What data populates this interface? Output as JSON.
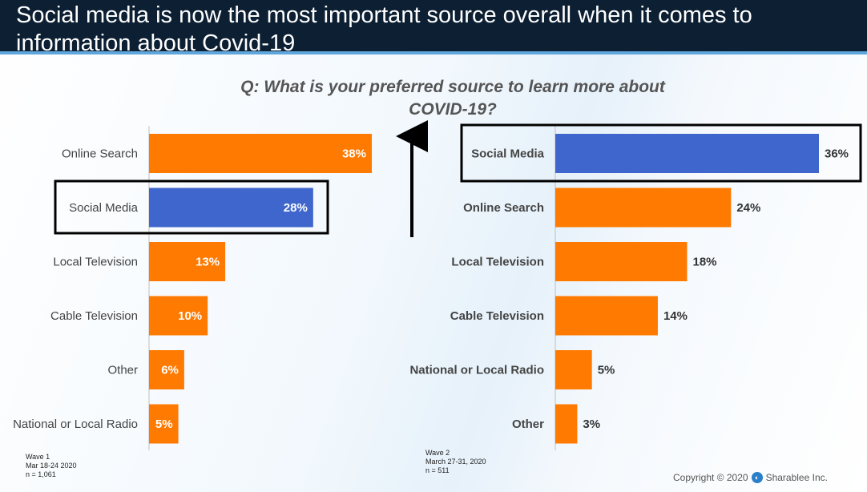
{
  "title": "Social media is now the most important source overall when it comes to information about Covid-19",
  "question": "Q: What is your preferred source to learn more about COVID-19?",
  "colors": {
    "orange": "#FF7A00",
    "blue": "#3F66CC",
    "dark_navy": "#0C1F33",
    "accent_line": "#5EA6DC"
  },
  "chart_data": [
    {
      "type": "bar",
      "orientation": "horizontal",
      "name": "Wave 1",
      "categories": [
        "Online Search",
        "Social Media",
        "Local Television",
        "Cable Television",
        "Other",
        "National or Local Radio"
      ],
      "values": [
        38,
        28,
        13,
        10,
        6,
        5
      ],
      "value_labels": [
        "38%",
        "28%",
        "13%",
        "10%",
        "6%",
        "5%"
      ],
      "highlight": "Social Media",
      "xlim": [
        0,
        38
      ]
    },
    {
      "type": "bar",
      "orientation": "horizontal",
      "name": "Wave 2",
      "categories": [
        "Social Media",
        "Online Search",
        "Local Television",
        "Cable Television",
        "National or Local Radio",
        "Other"
      ],
      "values": [
        36,
        24,
        18,
        14,
        5,
        3
      ],
      "value_labels": [
        "36%",
        "24%",
        "18%",
        "14%",
        "5%",
        "3%"
      ],
      "highlight": "Social Media",
      "xlim": [
        0,
        36
      ]
    }
  ],
  "wave1_note": {
    "line1": "Wave 1",
    "line2": "Mar 18-24 2020",
    "line3": "n = 1,061"
  },
  "wave2_note": {
    "line1": "Wave 2",
    "line2": "March 27-31, 2020",
    "line3": "n = 511"
  },
  "copyright": {
    "text": "Copyright © 2020",
    "brand": "Sharablee Inc."
  }
}
